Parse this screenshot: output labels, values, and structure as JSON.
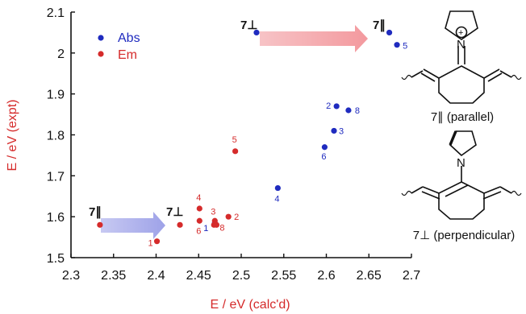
{
  "chart_data": {
    "type": "scatter",
    "title": "",
    "xlabel": "E / eV (calc'd)",
    "ylabel": "E / eV (expt)",
    "xlim": [
      2.3,
      2.7
    ],
    "ylim": [
      1.5,
      2.1
    ],
    "xticks": [
      "2.3",
      "2.35",
      "2.4",
      "2.45",
      "2.5",
      "2.55",
      "2.6",
      "2.65",
      "2.7"
    ],
    "yticks": [
      "1.5",
      "1.6",
      "1.7",
      "1.8",
      "1.9",
      "2",
      "2.1"
    ],
    "legend": {
      "position": "top-left"
    },
    "series": [
      {
        "name": "Abs",
        "color": "#1f2bbf",
        "points": [
          {
            "x": 2.469,
            "y": 1.585,
            "label": "1"
          },
          {
            "x": 2.612,
            "y": 1.87,
            "label": "2"
          },
          {
            "x": 2.609,
            "y": 1.81,
            "label": "3"
          },
          {
            "x": 2.543,
            "y": 1.67,
            "label": "4"
          },
          {
            "x": 2.683,
            "y": 2.02,
            "label": "5"
          },
          {
            "x": 2.598,
            "y": 1.77,
            "label": "6"
          },
          {
            "x": 2.518,
            "y": 2.05,
            "label": ""
          },
          {
            "x": 2.626,
            "y": 1.86,
            "label": "8"
          },
          {
            "x": 2.674,
            "y": 2.05,
            "label": ""
          }
        ]
      },
      {
        "name": "Em",
        "color": "#d52b2b",
        "points": [
          {
            "x": 2.401,
            "y": 1.54,
            "label": "1"
          },
          {
            "x": 2.485,
            "y": 1.6,
            "label": "2"
          },
          {
            "x": 2.469,
            "y": 1.59,
            "label": "3"
          },
          {
            "x": 2.451,
            "y": 1.62,
            "label": "4"
          },
          {
            "x": 2.493,
            "y": 1.76,
            "label": "5"
          },
          {
            "x": 2.451,
            "y": 1.59,
            "label": "6"
          },
          {
            "x": 2.468,
            "y": 1.58,
            "label": ""
          },
          {
            "x": 2.471,
            "y": 1.58,
            "label": "8"
          },
          {
            "x": 2.334,
            "y": 1.58,
            "label": ""
          },
          {
            "x": 2.428,
            "y": 1.58,
            "label": ""
          }
        ]
      }
    ],
    "annotations": {
      "upper_left": "7⊥",
      "upper_right": "7∥",
      "lower_left": "7∥",
      "lower_right": "7⊥"
    }
  },
  "structures": {
    "parallel_label": "7∥ (parallel)",
    "perpendicular_label": "7⊥ (perpendicular)",
    "parallel_n": "N",
    "perpendicular_n": "N",
    "plus": "+"
  }
}
